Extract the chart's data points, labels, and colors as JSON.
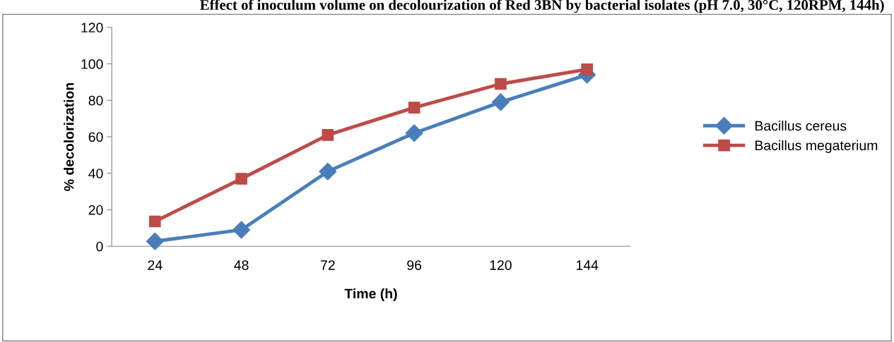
{
  "chart_data": {
    "type": "line",
    "title": "Effect of inoculum volume on decolourization of Red 3BN by bacterial isolates (pH 7.0, 30°C, 120RPM, 144h)",
    "xlabel": "Time (h)",
    "ylabel": "% decolorization",
    "categories": [
      "24",
      "48",
      "72",
      "96",
      "120",
      "144"
    ],
    "series": [
      {
        "name": "Bacillus cereus",
        "color": "#4a7ebb",
        "marker": "diamond",
        "values": [
          2.7,
          9,
          41,
          62,
          79,
          94
        ]
      },
      {
        "name": "Bacillus megaterium",
        "color": "#be4b48",
        "marker": "square",
        "values": [
          13.6,
          37,
          61,
          76,
          89,
          97
        ]
      }
    ],
    "ylim": [
      0,
      120
    ],
    "yticks": [
      0,
      20,
      40,
      60,
      80,
      100,
      120
    ],
    "grid": false,
    "legend": "right",
    "line_style": "solid"
  }
}
